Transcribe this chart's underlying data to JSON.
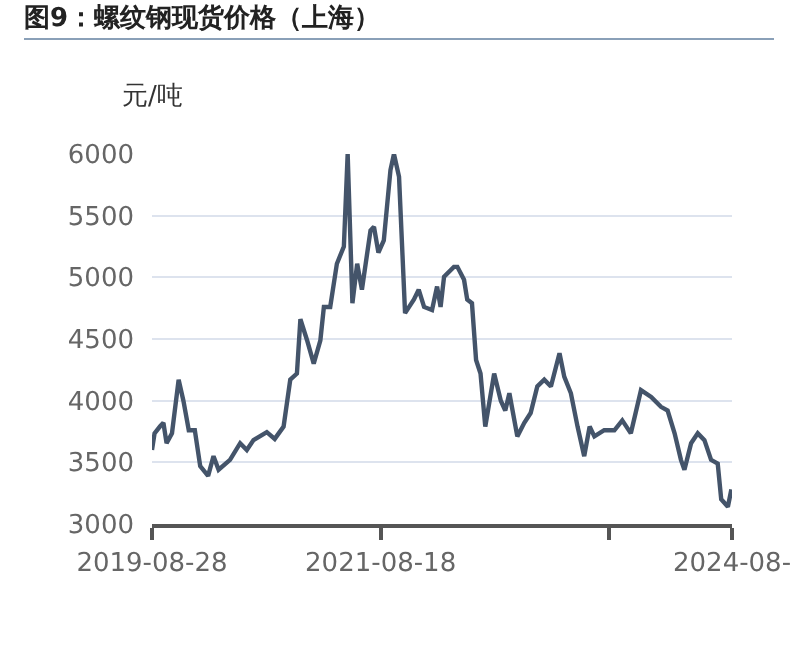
{
  "chart_data": {
    "type": "line",
    "title": "图9：螺纹钢现货价格（上海）",
    "ylabel": "元/吨",
    "x": [
      "2019-08-28",
      "2019-09-05",
      "2019-09-22",
      "2019-10-03",
      "2019-10-13",
      "2019-10-30",
      "2019-11-20",
      "2019-12-05",
      "2019-12-22",
      "2020-01-10",
      "2020-01-27",
      "2020-02-21",
      "2020-03-09",
      "2020-03-25",
      "2020-04-30",
      "2020-06-01",
      "2020-06-22",
      "2020-07-13",
      "2020-08-24",
      "2020-09-18",
      "2020-10-16",
      "2020-11-06",
      "2020-11-27",
      "2020-12-08",
      "2020-12-29",
      "2021-01-19",
      "2021-02-09",
      "2021-02-20",
      "2021-03-12",
      "2021-04-02",
      "2021-04-24",
      "2021-05-06",
      "2021-05-21",
      "2021-06-05",
      "2021-06-20",
      "2021-07-17",
      "2021-07-28",
      "2021-08-11",
      "2021-08-28",
      "2021-09-18",
      "2021-09-29",
      "2021-10-15",
      "2021-11-03",
      "2021-12-01",
      "2021-12-16",
      "2022-01-02",
      "2022-01-27",
      "2022-02-12",
      "2022-02-23",
      "2022-03-06",
      "2022-04-06",
      "2022-04-17",
      "2022-05-08",
      "2022-05-18",
      "2022-06-02",
      "2022-06-15",
      "2022-06-29",
      "2022-07-14",
      "2022-08-11",
      "2022-09-01",
      "2022-09-15",
      "2022-09-28",
      "2022-10-23",
      "2022-11-14",
      "2022-12-04",
      "2022-12-25",
      "2023-01-16",
      "2023-02-06",
      "2023-03-05",
      "2023-03-20",
      "2023-04-10",
      "2023-05-01",
      "2023-05-22",
      "2023-06-08",
      "2023-06-23",
      "2023-07-24",
      "2023-08-25",
      "2023-09-19",
      "2023-10-16",
      "2023-11-17",
      "2023-12-19",
      "2024-01-19",
      "2024-02-09",
      "2024-03-02",
      "2024-03-22",
      "2024-04-02",
      "2024-04-23",
      "2024-05-14",
      "2024-06-04",
      "2024-06-25",
      "2024-07-16",
      "2024-07-27",
      "2024-08-17",
      "2024-08-28"
    ],
    "series": [
      {
        "color": "#44546a",
        "values": [
          3600,
          3735,
          3790,
          3820,
          3655,
          3735,
          4170,
          4000,
          3760,
          3760,
          3470,
          3390,
          3550,
          3440,
          3520,
          3655,
          3600,
          3680,
          3745,
          3690,
          3790,
          4170,
          4220,
          4660,
          4490,
          4300,
          4490,
          4760,
          4760,
          5110,
          5250,
          6000,
          4790,
          5110,
          4900,
          5380,
          5410,
          5200,
          5300,
          5870,
          6000,
          5815,
          4710,
          4820,
          4900,
          4760,
          4735,
          4925,
          4760,
          5005,
          5085,
          5085,
          4980,
          4820,
          4790,
          4330,
          4220,
          3790,
          4220,
          4000,
          3920,
          4060,
          3710,
          3820,
          3900,
          4115,
          4170,
          4115,
          4385,
          4195,
          4060,
          3790,
          3550,
          3790,
          3710,
          3760,
          3760,
          3840,
          3735,
          4085,
          4030,
          3950,
          3920,
          3735,
          3520,
          3440,
          3655,
          3735,
          3680,
          3520,
          3490,
          3200,
          3140,
          3280
        ]
      }
    ],
    "xlim": [
      "2019-08-28",
      "2024-08-30"
    ],
    "xticks": [
      {
        "value": "2019-08-28",
        "label": "2019-08-28"
      },
      {
        "value": "2021-08-18",
        "label": "2021-08-18"
      },
      {
        "value": "2023-08-08",
        "label": null
      },
      {
        "value": "2024-08-30",
        "label": "2024-08-"
      }
    ],
    "ylim": [
      3000,
      6000
    ],
    "yticks": [
      3000,
      3500,
      4000,
      4500,
      5000,
      5500,
      6000
    ],
    "grid": "y",
    "marker": "none",
    "line_style": "solid"
  }
}
